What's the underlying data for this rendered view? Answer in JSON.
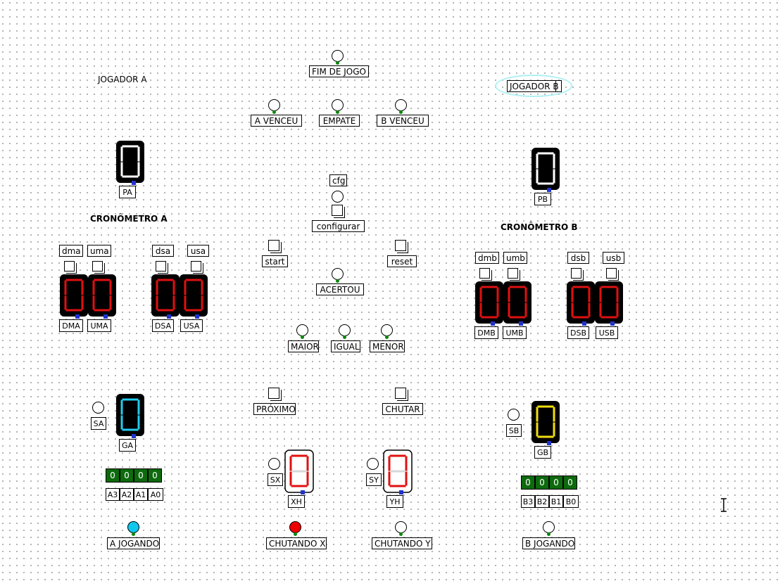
{
  "labels": {
    "jogador_a": "JOGADOR A",
    "jogador_b": "JOGADOR B",
    "cronometro_a": "CRONÔMETRO A",
    "cronometro_b": "CRONÔMETRO B"
  },
  "outputs": {
    "fim_de_jogo": "FIM DE JOGO",
    "a_venceu": "A VENCEU",
    "empate": "EMPATE",
    "b_venceu": "B VENCEU",
    "acertou": "ACERTOU",
    "maior": "MAIOR",
    "igual": "IGUAL",
    "menor": "MENOR",
    "a_jogando": "A JOGANDO",
    "chutando_x": "CHUTANDO X",
    "chutando_y": "CHUTANDO Y",
    "b_jogando": "B JOGANDO",
    "sa": "SA",
    "sb": "SB",
    "sx": "SX",
    "sy": "SY"
  },
  "buttons": {
    "configurar": "configurar",
    "start": "start",
    "reset": "reset",
    "proximo": "PRÓXIMO",
    "chutar": "CHUTAR"
  },
  "tunnels": {
    "cfg": "cfg",
    "dma": "dma",
    "uma": "uma",
    "dsa": "dsa",
    "usa": "usa",
    "dmb": "dmb",
    "umb": "umb",
    "dsb": "dsb",
    "usb": "usb"
  },
  "displays": {
    "pa": "PA",
    "pb": "PB",
    "dma": "DMA",
    "uma": "UMA",
    "dsa": "DSA",
    "usa": "USA",
    "dmb": "DMB",
    "umb": "UMB",
    "dsb": "DSB",
    "usb": "USB",
    "ga": "GA",
    "gb": "GB",
    "xh": "XH",
    "yh": "YH"
  },
  "bits_a": {
    "values": [
      "0",
      "0",
      "0",
      "0"
    ],
    "names": [
      "A3",
      "A2",
      "A1",
      "A0"
    ]
  },
  "bits_b": {
    "values": [
      "0",
      "0",
      "0",
      "0"
    ],
    "names": [
      "B3",
      "B2",
      "B1",
      "B0"
    ]
  },
  "colors": {
    "red_segment": "#e01010",
    "cyan_segment": "#22ccee",
    "yellow_segment": "#f0dd10",
    "white_segment": "#ffffff",
    "led_on_red": "#ee0000",
    "led_on_cyan": "#10c8ee",
    "pin_green": "#0a8a0a",
    "bit_green": "#0d6a0d"
  }
}
